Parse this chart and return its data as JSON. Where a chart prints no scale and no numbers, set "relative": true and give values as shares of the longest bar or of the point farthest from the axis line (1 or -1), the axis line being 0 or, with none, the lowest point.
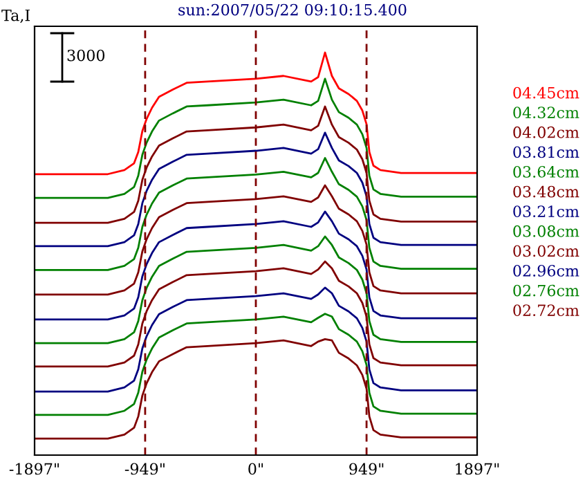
{
  "chart_data": {
    "type": "line",
    "title": "sun:2007/05/22 09:10:15.400",
    "ylabel": "Ta,I",
    "annotations": [
      "3000"
    ],
    "relative": true,
    "x": [
      -1897,
      -1269,
      -1127,
      -1044,
      -1008,
      -973,
      -937,
      -890,
      -830,
      -712,
      -593,
      -415,
      0,
      237,
      474,
      534,
      593,
      652,
      712,
      795,
      866,
      913,
      949,
      973,
      1008,
      1068,
      1245,
      1897
    ],
    "xlim": [
      -1897,
      1897
    ],
    "xticks": [
      {
        "value": -1897,
        "label": "-1897\""
      },
      {
        "value": -949,
        "label": "-949\""
      },
      {
        "value": 0,
        "label": "0\""
      },
      {
        "value": 949,
        "label": "949\""
      },
      {
        "value": 1897,
        "label": "1897\""
      }
    ],
    "ref_lines": [
      {
        "axis": "x",
        "value": -949,
        "color": "#800000",
        "line_style": "dashed"
      },
      {
        "axis": "x",
        "value": 0,
        "color": "#800000",
        "line_style": "dashed"
      },
      {
        "axis": "x",
        "value": 949,
        "color": "#800000",
        "line_style": "dashed"
      }
    ],
    "grid": false,
    "legend": "right",
    "marker": "none",
    "line_style": "solid",
    "series": [
      {
        "name": "04.45cm",
        "color": "#ff0000",
        "values": [
          0.698,
          0.698,
          0.708,
          0.725,
          0.753,
          0.805,
          0.835,
          0.863,
          0.89,
          0.908,
          0.925,
          0.928,
          0.935,
          0.942,
          0.928,
          0.939,
          1.0,
          0.942,
          0.911,
          0.897,
          0.88,
          0.856,
          0.822,
          0.753,
          0.719,
          0.708,
          0.701,
          0.701
        ]
      },
      {
        "name": "04.32cm",
        "color": "#008000",
        "values": [
          0.639,
          0.639,
          0.649,
          0.666,
          0.694,
          0.746,
          0.776,
          0.804,
          0.831,
          0.849,
          0.866,
          0.869,
          0.876,
          0.883,
          0.869,
          0.88,
          0.935,
          0.883,
          0.852,
          0.838,
          0.821,
          0.797,
          0.763,
          0.694,
          0.66,
          0.649,
          0.642,
          0.642
        ]
      },
      {
        "name": "04.02cm",
        "color": "#800000",
        "values": [
          0.577,
          0.577,
          0.587,
          0.604,
          0.632,
          0.684,
          0.714,
          0.742,
          0.769,
          0.787,
          0.804,
          0.807,
          0.814,
          0.821,
          0.807,
          0.818,
          0.866,
          0.821,
          0.79,
          0.776,
          0.759,
          0.735,
          0.701,
          0.632,
          0.598,
          0.587,
          0.58,
          0.58
        ]
      },
      {
        "name": "03.81cm",
        "color": "#000080",
        "values": [
          0.519,
          0.519,
          0.529,
          0.546,
          0.574,
          0.626,
          0.656,
          0.684,
          0.711,
          0.729,
          0.746,
          0.749,
          0.756,
          0.763,
          0.749,
          0.76,
          0.801,
          0.763,
          0.732,
          0.718,
          0.701,
          0.677,
          0.643,
          0.574,
          0.54,
          0.529,
          0.522,
          0.522
        ]
      },
      {
        "name": "03.64cm",
        "color": "#008000",
        "values": [
          0.46,
          0.46,
          0.47,
          0.487,
          0.515,
          0.567,
          0.597,
          0.625,
          0.652,
          0.67,
          0.687,
          0.69,
          0.697,
          0.704,
          0.69,
          0.701,
          0.738,
          0.704,
          0.673,
          0.659,
          0.642,
          0.618,
          0.584,
          0.515,
          0.481,
          0.47,
          0.463,
          0.463
        ]
      },
      {
        "name": "03.48cm",
        "color": "#800000",
        "values": [
          0.399,
          0.399,
          0.409,
          0.426,
          0.454,
          0.506,
          0.536,
          0.564,
          0.591,
          0.609,
          0.626,
          0.629,
          0.636,
          0.643,
          0.629,
          0.64,
          0.67,
          0.643,
          0.612,
          0.598,
          0.581,
          0.557,
          0.523,
          0.454,
          0.42,
          0.409,
          0.402,
          0.402
        ]
      },
      {
        "name": "03.21cm",
        "color": "#000080",
        "values": [
          0.337,
          0.337,
          0.347,
          0.364,
          0.392,
          0.444,
          0.474,
          0.502,
          0.529,
          0.547,
          0.564,
          0.567,
          0.574,
          0.581,
          0.567,
          0.578,
          0.605,
          0.581,
          0.55,
          0.536,
          0.519,
          0.495,
          0.461,
          0.392,
          0.358,
          0.347,
          0.34,
          0.34
        ]
      },
      {
        "name": "03.08cm",
        "color": "#008000",
        "values": [
          0.278,
          0.278,
          0.288,
          0.305,
          0.333,
          0.385,
          0.415,
          0.443,
          0.47,
          0.488,
          0.505,
          0.508,
          0.515,
          0.522,
          0.508,
          0.519,
          0.543,
          0.522,
          0.491,
          0.477,
          0.46,
          0.436,
          0.402,
          0.333,
          0.299,
          0.288,
          0.281,
          0.281
        ]
      },
      {
        "name": "03.02cm",
        "color": "#800000",
        "values": [
          0.22,
          0.22,
          0.23,
          0.247,
          0.275,
          0.327,
          0.357,
          0.385,
          0.412,
          0.43,
          0.447,
          0.45,
          0.457,
          0.464,
          0.45,
          0.461,
          0.481,
          0.464,
          0.433,
          0.419,
          0.402,
          0.378,
          0.344,
          0.275,
          0.241,
          0.23,
          0.223,
          0.223
        ]
      },
      {
        "name": "02.96cm",
        "color": "#000080",
        "values": [
          0.158,
          0.158,
          0.168,
          0.185,
          0.213,
          0.265,
          0.295,
          0.323,
          0.35,
          0.368,
          0.385,
          0.388,
          0.395,
          0.402,
          0.388,
          0.399,
          0.416,
          0.402,
          0.371,
          0.357,
          0.34,
          0.316,
          0.282,
          0.213,
          0.179,
          0.168,
          0.161,
          0.161
        ]
      },
      {
        "name": "02.76cm",
        "color": "#008000",
        "values": [
          0.1,
          0.1,
          0.11,
          0.127,
          0.155,
          0.207,
          0.237,
          0.265,
          0.292,
          0.31,
          0.327,
          0.33,
          0.337,
          0.344,
          0.33,
          0.341,
          0.351,
          0.344,
          0.313,
          0.299,
          0.282,
          0.258,
          0.224,
          0.155,
          0.121,
          0.11,
          0.103,
          0.103
        ]
      },
      {
        "name": "02.72cm",
        "color": "#800000",
        "values": [
          0.041,
          0.041,
          0.051,
          0.068,
          0.096,
          0.148,
          0.178,
          0.206,
          0.233,
          0.251,
          0.268,
          0.271,
          0.278,
          0.285,
          0.271,
          0.282,
          0.288,
          0.285,
          0.254,
          0.24,
          0.223,
          0.199,
          0.165,
          0.096,
          0.062,
          0.051,
          0.044,
          0.044
        ]
      }
    ]
  }
}
